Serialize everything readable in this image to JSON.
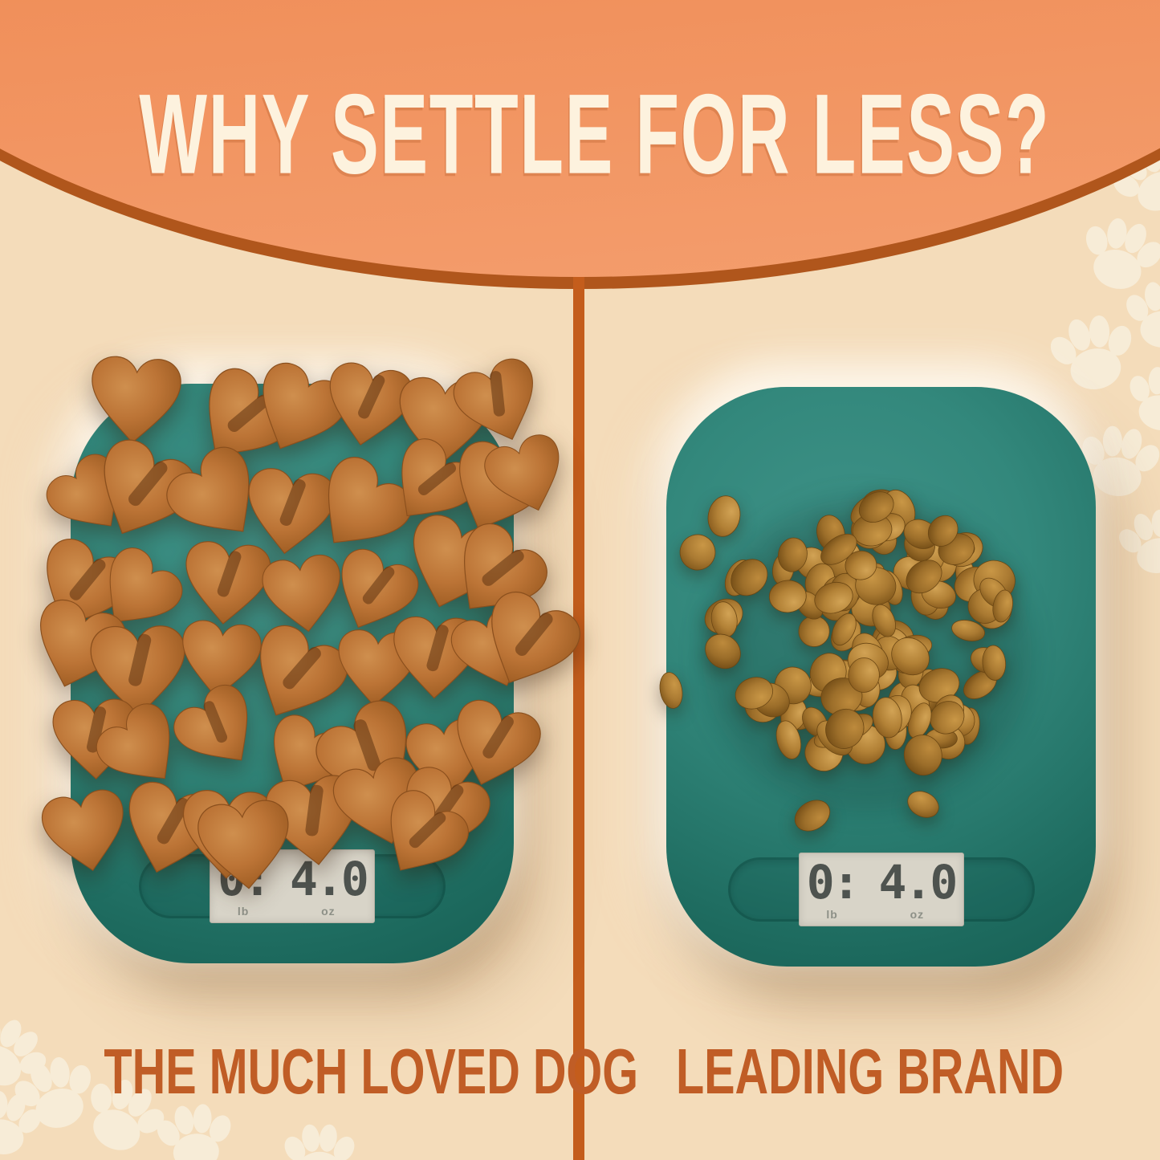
{
  "banner": {
    "title": "WHY SETTLE FOR LESS?"
  },
  "comparison": {
    "left": {
      "label": "THE MUCH LOVED DOG",
      "treats": "heart-shaped-treats",
      "scale_display": {
        "lb": "0:",
        "lb_unit": "lb",
        "oz": "4.0",
        "oz_unit": "oz"
      }
    },
    "right": {
      "label": "LEADING BRAND",
      "treats": "round-pellet-treats",
      "scale_display": {
        "lb": "0:",
        "lb_unit": "lb",
        "oz": "4.0",
        "oz_unit": "oz"
      }
    }
  },
  "decor": {
    "paw_icon": "paw-print",
    "heart_treat_icon": "heart-treat",
    "pellet_treat_icon": "pellet-treat"
  },
  "colors": {
    "background": "#f4dcba",
    "banner_orange": "#ef8a53",
    "banner_rim": "#b0561c",
    "divider": "#c45d1c",
    "title_cream": "#fdf2de",
    "label_rust": "#c05d26",
    "scale_teal": "#2f8478",
    "lcd_gray": "#d8d4c8",
    "paw_cream": "#f7ecd7"
  }
}
